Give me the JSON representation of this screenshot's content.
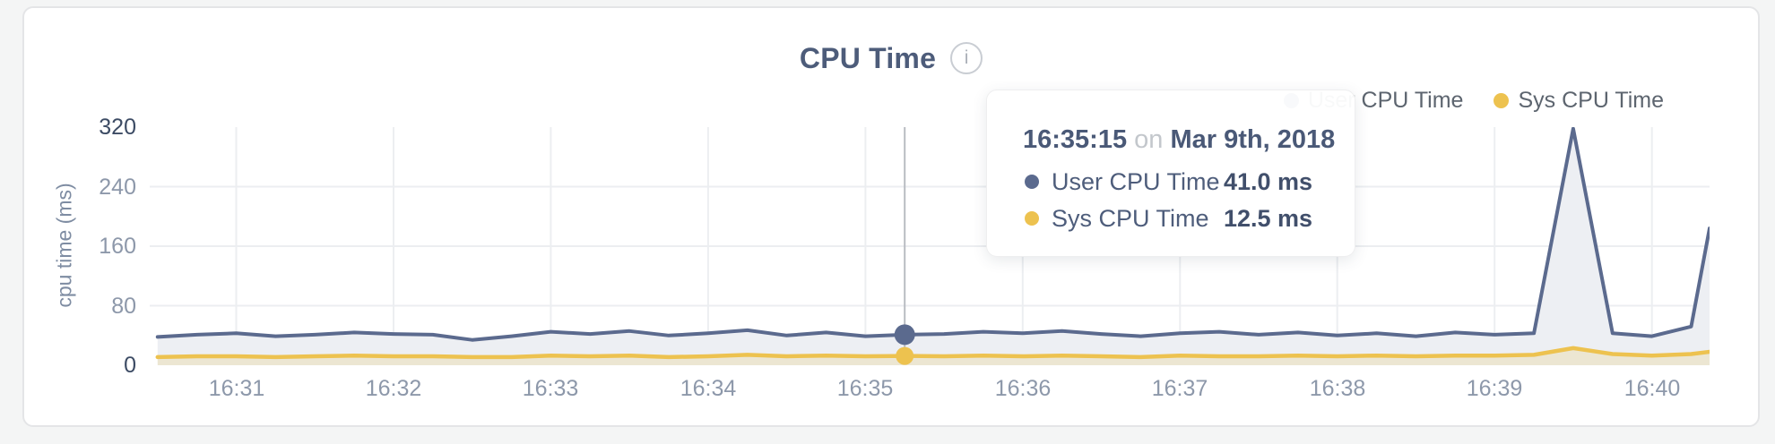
{
  "page": {
    "background": "#f4f5f5"
  },
  "card": {
    "title": "CPU Time",
    "info_glyph": "i"
  },
  "legend": {
    "items": [
      {
        "label": "User CPU Time",
        "color": "#5b6a8e"
      },
      {
        "label": "Sys CPU Time",
        "color": "#edc24f"
      }
    ]
  },
  "tooltip": {
    "time": "16:35:15",
    "connector": "on",
    "date": "Mar 9th, 2018",
    "rows": [
      {
        "label": "User CPU Time",
        "value": "41.0 ms",
        "color": "#5b6a8e"
      },
      {
        "label": "Sys CPU Time",
        "value": "12.5 ms",
        "color": "#edc24f"
      }
    ]
  },
  "chart_data": {
    "type": "area",
    "title": "CPU Time",
    "xlabel": "",
    "ylabel": "cpu time (ms)",
    "ylim": [
      0,
      320
    ],
    "grid": true,
    "grid_color": "#eceef1",
    "legend_position": "top-right",
    "y_ticks": [
      {
        "value": 320,
        "strong": true
      },
      {
        "value": 240,
        "strong": false
      },
      {
        "value": 160,
        "strong": false
      },
      {
        "value": 80,
        "strong": false
      },
      {
        "value": 0,
        "strong": true
      }
    ],
    "y_gridlines": [
      80,
      160,
      240
    ],
    "x_domain": [
      "16:30:27",
      "16:40:22"
    ],
    "x_ticks": [
      {
        "label": "16:31",
        "time": "16:31:00"
      },
      {
        "label": "16:32",
        "time": "16:32:00"
      },
      {
        "label": "16:33",
        "time": "16:33:00"
      },
      {
        "label": "16:34",
        "time": "16:34:00"
      },
      {
        "label": "16:35",
        "time": "16:35:00"
      },
      {
        "label": "16:36",
        "time": "16:36:00"
      },
      {
        "label": "16:37",
        "time": "16:37:00"
      },
      {
        "label": "16:38",
        "time": "16:38:00"
      },
      {
        "label": "16:39",
        "time": "16:39:00"
      },
      {
        "label": "16:40",
        "time": "16:40:00"
      }
    ],
    "times": [
      "16:30:30",
      "16:30:45",
      "16:31:00",
      "16:31:15",
      "16:31:30",
      "16:31:45",
      "16:32:00",
      "16:32:15",
      "16:32:30",
      "16:32:45",
      "16:33:00",
      "16:33:15",
      "16:33:30",
      "16:33:45",
      "16:34:00",
      "16:34:15",
      "16:34:30",
      "16:34:45",
      "16:35:00",
      "16:35:15",
      "16:35:30",
      "16:35:45",
      "16:36:00",
      "16:36:15",
      "16:36:30",
      "16:36:45",
      "16:37:00",
      "16:37:15",
      "16:37:30",
      "16:37:45",
      "16:38:00",
      "16:38:15",
      "16:38:30",
      "16:38:45",
      "16:39:00",
      "16:39:15",
      "16:39:30",
      "16:39:45",
      "16:40:00",
      "16:40:15",
      "16:40:22"
    ],
    "series": [
      {
        "name": "User CPU Time",
        "unit": "ms",
        "color": "#5b6a8e",
        "fill": "#edeff3",
        "line_width": 4,
        "values": [
          38,
          41,
          43,
          39,
          41,
          44,
          42,
          41,
          34,
          39,
          45,
          42,
          46,
          40,
          43,
          47,
          40,
          44,
          39,
          41,
          42,
          45,
          43,
          46,
          42,
          39,
          43,
          45,
          41,
          44,
          40,
          43,
          39,
          44,
          41,
          43,
          318,
          43,
          39,
          52,
          184
        ]
      },
      {
        "name": "Sys CPU Time",
        "unit": "ms",
        "color": "#edc24f",
        "fill": "rgba(237,194,79,0.20)",
        "line_width": 4.5,
        "values": [
          11,
          12,
          12,
          11,
          12,
          13,
          12,
          12,
          11,
          11,
          13,
          12,
          13,
          11,
          12,
          14,
          12,
          13,
          12,
          12.5,
          12,
          13,
          12,
          13,
          12,
          11,
          13,
          12,
          12,
          13,
          12,
          13,
          12,
          13,
          13,
          14,
          23,
          15,
          13,
          15,
          18
        ]
      }
    ],
    "highlight": {
      "time": "16:35:15",
      "crosshair_color": "#b9bcc2",
      "dot_radii": [
        11.5,
        10
      ]
    }
  }
}
